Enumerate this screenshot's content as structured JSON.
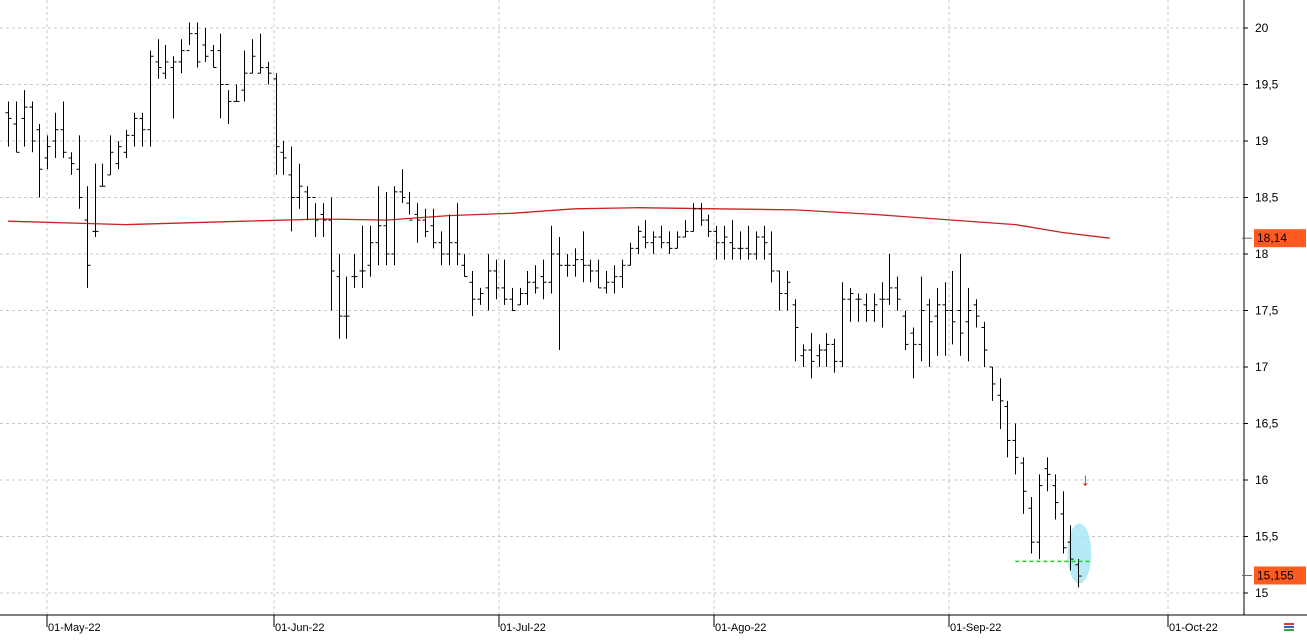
{
  "chart_data": {
    "type": "ohlc",
    "title": "",
    "xlabel": "",
    "ylabel": "",
    "ylim": [
      14.93,
      20.25
    ],
    "y_ticks": [
      "20",
      "19,5",
      "19",
      "18,5",
      "18",
      "17,5",
      "17",
      "16,5",
      "16",
      "15,5",
      "15"
    ],
    "x_ticks": [
      "01-May-22",
      "01-Jun-22",
      "01-Jul-22",
      "01-Ago-22",
      "01-Sep-22",
      "01-Oct-22"
    ],
    "grid": true,
    "colors": {
      "bars": "#000000",
      "moving_average": "#cc2222",
      "support_line": "#22cc22",
      "highlight": "#a8e8f4",
      "arrow": "#e00000",
      "badge_bg": "#ff5a1f",
      "grid": "#c8c8c8"
    },
    "series": [
      {
        "kind": "ohlc",
        "bars": [
          [
            19.25,
            19.35,
            18.95,
            19.2
          ],
          [
            19.15,
            19.35,
            18.9,
            18.9
          ],
          [
            19.2,
            19.45,
            18.95,
            19.3
          ],
          [
            19.3,
            19.35,
            18.9,
            19.0
          ],
          [
            19.1,
            19.15,
            18.5,
            18.75
          ],
          [
            18.85,
            19.05,
            18.75,
            18.95
          ],
          [
            19.0,
            19.25,
            18.85,
            19.1
          ],
          [
            19.1,
            19.35,
            18.85,
            18.9
          ],
          [
            18.85,
            18.9,
            18.7,
            18.8
          ],
          [
            18.75,
            19.05,
            18.4,
            18.5
          ],
          [
            18.3,
            18.6,
            17.7,
            17.9
          ],
          [
            18.2,
            18.8,
            18.15,
            18.2
          ],
          [
            18.6,
            18.8,
            18.6,
            18.6
          ],
          [
            18.7,
            19.05,
            18.7,
            18.9
          ],
          [
            18.8,
            19.0,
            18.75,
            18.95
          ],
          [
            18.9,
            19.1,
            18.85,
            19.05
          ],
          [
            19.05,
            19.25,
            18.95,
            19.2
          ],
          [
            19.2,
            19.25,
            18.95,
            19.1
          ],
          [
            19.1,
            19.8,
            18.95,
            19.75
          ],
          [
            19.7,
            19.9,
            19.55,
            19.65
          ],
          [
            19.6,
            19.85,
            19.55,
            19.7
          ],
          [
            19.65,
            19.75,
            19.2,
            19.7
          ],
          [
            19.7,
            19.9,
            19.6,
            19.8
          ],
          [
            19.8,
            20.05,
            19.85,
            19.95
          ],
          [
            19.95,
            20.05,
            19.65,
            19.7
          ],
          [
            19.85,
            20.0,
            19.7,
            19.75
          ],
          [
            19.8,
            19.85,
            19.65,
            19.65
          ],
          [
            19.8,
            19.95,
            19.2,
            19.5
          ],
          [
            19.5,
            19.45,
            19.15,
            19.35
          ],
          [
            19.35,
            19.5,
            19.35,
            19.35
          ],
          [
            19.45,
            19.8,
            19.35,
            19.6
          ],
          [
            19.6,
            19.9,
            19.6,
            19.75
          ],
          [
            19.6,
            19.95,
            19.6,
            19.65
          ],
          [
            19.65,
            19.7,
            19.5,
            19.6
          ],
          [
            19.55,
            19.6,
            18.7,
            18.95
          ],
          [
            18.9,
            19.0,
            18.7,
            18.85
          ],
          [
            18.7,
            18.95,
            18.2,
            18.5
          ],
          [
            18.5,
            18.8,
            18.4,
            18.6
          ],
          [
            18.55,
            18.6,
            18.3,
            18.5
          ],
          [
            18.5,
            18.45,
            18.15,
            18.3
          ],
          [
            18.35,
            18.45,
            18.15,
            18.3
          ],
          [
            18.3,
            18.5,
            17.5,
            17.85
          ],
          [
            17.8,
            18.0,
            17.25,
            17.45
          ],
          [
            17.45,
            17.8,
            17.25,
            17.45
          ],
          [
            17.8,
            18.0,
            17.7,
            17.8
          ],
          [
            17.85,
            18.25,
            17.7,
            17.85
          ],
          [
            17.9,
            18.25,
            17.8,
            18.1
          ],
          [
            18.1,
            18.6,
            17.9,
            18.25
          ],
          [
            18.25,
            18.55,
            17.9,
            18.0
          ],
          [
            18.0,
            18.6,
            17.9,
            18.55
          ],
          [
            18.55,
            18.75,
            18.45,
            18.5
          ],
          [
            18.45,
            18.55,
            18.35,
            18.3
          ],
          [
            18.35,
            18.45,
            18.1,
            18.3
          ],
          [
            18.3,
            18.4,
            18.15,
            18.2
          ],
          [
            18.25,
            18.4,
            18.05,
            18.1
          ],
          [
            18.1,
            18.2,
            17.9,
            18.0
          ],
          [
            18.0,
            18.35,
            17.9,
            18.1
          ],
          [
            18.1,
            18.45,
            17.9,
            18.0
          ],
          [
            17.9,
            18.0,
            17.8,
            17.8
          ],
          [
            17.75,
            17.85,
            17.45,
            17.6
          ],
          [
            17.6,
            17.7,
            17.55,
            17.65
          ],
          [
            17.7,
            18.0,
            17.5,
            17.85
          ],
          [
            17.85,
            17.95,
            17.6,
            17.7
          ],
          [
            17.7,
            17.95,
            17.55,
            17.6
          ],
          [
            17.6,
            17.7,
            17.5,
            17.5
          ],
          [
            17.55,
            17.7,
            17.55,
            17.65
          ],
          [
            17.65,
            17.85,
            17.55,
            17.75
          ],
          [
            17.75,
            17.9,
            17.65,
            17.7
          ],
          [
            17.8,
            17.95,
            17.6,
            17.75
          ],
          [
            17.75,
            18.25,
            17.65,
            18.0
          ],
          [
            18.0,
            18.15,
            17.15,
            17.9
          ],
          [
            17.9,
            18.0,
            17.8,
            17.9
          ],
          [
            17.9,
            18.05,
            17.8,
            17.95
          ],
          [
            17.95,
            18.2,
            17.75,
            17.9
          ],
          [
            17.9,
            17.95,
            17.75,
            17.85
          ],
          [
            17.85,
            17.95,
            17.7,
            17.7
          ],
          [
            17.7,
            17.85,
            17.65,
            17.75
          ],
          [
            17.75,
            17.9,
            17.65,
            17.8
          ],
          [
            17.8,
            17.95,
            17.7,
            17.9
          ],
          [
            17.9,
            18.1,
            17.9,
            18.05
          ],
          [
            18.05,
            18.25,
            18.0,
            18.2
          ],
          [
            18.15,
            18.3,
            18.05,
            18.1
          ],
          [
            18.1,
            18.2,
            18.0,
            18.15
          ],
          [
            18.15,
            18.25,
            18.05,
            18.1
          ],
          [
            18.1,
            18.2,
            18.0,
            18.05
          ],
          [
            18.05,
            18.2,
            18.05,
            18.15
          ],
          [
            18.15,
            18.3,
            18.15,
            18.2
          ],
          [
            18.2,
            18.45,
            18.2,
            18.4
          ],
          [
            18.4,
            18.45,
            18.25,
            18.3
          ],
          [
            18.3,
            18.35,
            18.15,
            18.2
          ],
          [
            18.2,
            18.25,
            17.95,
            18.1
          ],
          [
            18.1,
            18.25,
            17.95,
            18.15
          ],
          [
            18.1,
            18.3,
            17.95,
            18.05
          ],
          [
            18.05,
            18.2,
            17.95,
            18.05
          ],
          [
            18.05,
            18.25,
            17.95,
            18.0
          ],
          [
            18.0,
            18.2,
            17.95,
            18.15
          ],
          [
            18.15,
            18.25,
            17.95,
            18.1
          ],
          [
            18.0,
            18.2,
            17.75,
            17.85
          ],
          [
            17.85,
            17.85,
            17.5,
            17.65
          ],
          [
            17.65,
            17.85,
            17.5,
            17.75
          ],
          [
            17.55,
            17.6,
            17.05,
            17.35
          ],
          [
            17.1,
            17.2,
            17.0,
            17.15
          ],
          [
            17.15,
            17.3,
            16.9,
            17.05
          ],
          [
            17.1,
            17.2,
            17.0,
            17.15
          ],
          [
            17.15,
            17.3,
            17.0,
            17.2
          ],
          [
            17.2,
            17.25,
            16.95,
            17.05
          ],
          [
            17.05,
            17.75,
            17.0,
            17.6
          ],
          [
            17.6,
            17.7,
            17.4,
            17.65
          ],
          [
            17.6,
            17.65,
            17.4,
            17.6
          ],
          [
            17.55,
            17.65,
            17.4,
            17.5
          ],
          [
            17.5,
            17.65,
            17.4,
            17.55
          ],
          [
            17.6,
            17.75,
            17.35,
            17.6
          ],
          [
            17.6,
            18.0,
            17.55,
            17.7
          ],
          [
            17.7,
            17.8,
            17.5,
            17.6
          ],
          [
            17.45,
            17.5,
            17.15,
            17.2
          ],
          [
            17.3,
            17.35,
            16.9,
            17.2
          ],
          [
            17.2,
            17.8,
            17.05,
            17.5
          ],
          [
            17.55,
            17.6,
            17.0,
            17.4
          ],
          [
            17.45,
            17.7,
            17.1,
            17.55
          ],
          [
            17.55,
            17.75,
            17.1,
            17.5
          ],
          [
            17.5,
            17.85,
            17.2,
            17.4
          ],
          [
            17.5,
            18.0,
            17.1,
            17.3
          ],
          [
            17.4,
            17.7,
            17.05,
            17.5
          ],
          [
            17.55,
            17.6,
            17.35,
            17.45
          ],
          [
            17.35,
            17.4,
            17.0,
            17.15
          ],
          [
            17.0,
            17.0,
            16.7,
            16.85
          ],
          [
            16.75,
            16.9,
            16.45,
            16.7
          ],
          [
            16.65,
            16.7,
            16.2,
            16.35
          ],
          [
            16.35,
            16.5,
            16.05,
            16.2
          ],
          [
            16.15,
            16.2,
            15.7,
            15.9
          ],
          [
            15.75,
            15.85,
            15.35,
            15.45
          ],
          [
            15.45,
            16.05,
            15.3,
            15.95
          ],
          [
            16.1,
            16.2,
            15.9,
            16.05
          ],
          [
            15.95,
            16.05,
            15.65,
            15.8
          ],
          [
            15.7,
            15.9,
            15.35,
            15.4
          ],
          [
            15.45,
            15.6,
            15.2,
            15.3
          ],
          [
            15.25,
            15.3,
            15.05,
            15.15
          ]
        ]
      },
      {
        "kind": "line",
        "points": [
          [
            0,
            18.29
          ],
          [
            15,
            18.26
          ],
          [
            30,
            18.29
          ],
          [
            40,
            18.31
          ],
          [
            48,
            18.3
          ],
          [
            56,
            18.34
          ],
          [
            64,
            18.36
          ],
          [
            72,
            18.4
          ],
          [
            80,
            18.41
          ],
          [
            90,
            18.4
          ],
          [
            100,
            18.39
          ],
          [
            110,
            18.35
          ],
          [
            120,
            18.3
          ],
          [
            128,
            18.26
          ],
          [
            134,
            18.19
          ],
          [
            140,
            18.14
          ]
        ]
      }
    ],
    "annotations": {
      "last_ma": "18,14",
      "last_price": "15,155",
      "support_level": 15.28,
      "arrow": "↓"
    }
  }
}
